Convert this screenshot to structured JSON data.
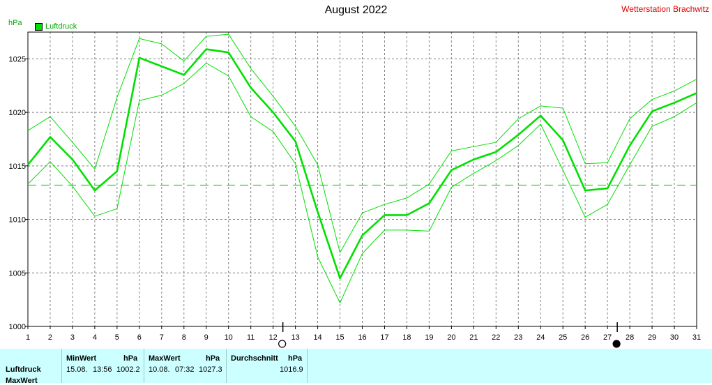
{
  "header": {
    "title": "August 2022",
    "station": "Wetterstation Brachwitz",
    "unit": "hPa",
    "legend": "Luftdruck"
  },
  "chart_data": {
    "type": "line",
    "title": "August 2022",
    "ylabel": "hPa",
    "ylim": [
      1000,
      1027.5
    ],
    "yticks": [
      1000,
      1005,
      1010,
      1015,
      1020,
      1025
    ],
    "xlim": [
      1,
      31
    ],
    "x": [
      1,
      2,
      3,
      4,
      5,
      6,
      7,
      8,
      9,
      10,
      11,
      12,
      13,
      14,
      15,
      16,
      17,
      18,
      19,
      20,
      21,
      22,
      23,
      24,
      25,
      26,
      27,
      28,
      29,
      30,
      31
    ],
    "series": [
      {
        "name": "Luftdruck",
        "role": "mean",
        "values": [
          1015.1,
          1017.7,
          1015.6,
          1012.7,
          1014.5,
          1025.1,
          1024.3,
          1023.5,
          1025.9,
          1025.6,
          1022.3,
          1020.0,
          1017.3,
          1010.7,
          1004.5,
          1008.5,
          1010.4,
          1010.4,
          1011.5,
          1014.6,
          1015.6,
          1016.3,
          1017.9,
          1019.7,
          1017.4,
          1012.7,
          1012.9,
          1016.9,
          1020.1,
          1020.9,
          1021.8
        ]
      },
      {
        "role": "max",
        "values": [
          1018.3,
          1019.6,
          1017.2,
          1014.7,
          1021.4,
          1026.9,
          1026.4,
          1024.8,
          1027.1,
          1027.3,
          1024.1,
          1021.5,
          1018.7,
          1015.1,
          1006.9,
          1010.6,
          1011.4,
          1012.0,
          1013.3,
          1016.4,
          1016.8,
          1017.2,
          1019.4,
          1020.6,
          1020.4,
          1015.2,
          1015.3,
          1019.4,
          1021.2,
          1022.0,
          1023.1
        ]
      },
      {
        "role": "min",
        "values": [
          1013.3,
          1015.4,
          1013.1,
          1010.3,
          1011.0,
          1021.1,
          1021.6,
          1022.7,
          1024.6,
          1023.4,
          1019.6,
          1018.2,
          1015.2,
          1006.5,
          1002.2,
          1006.8,
          1009.0,
          1009.0,
          1008.9,
          1013.0,
          1014.3,
          1015.5,
          1016.9,
          1018.9,
          1014.6,
          1010.2,
          1011.4,
          1015.1,
          1018.7,
          1019.6,
          1020.9
        ]
      }
    ],
    "average": 1016.9,
    "average_line_value": 1013.2,
    "markers": [
      {
        "day": 12,
        "symbol": "full-moon"
      },
      {
        "day": 27,
        "symbol": "new-moon"
      }
    ],
    "grid": true,
    "colors": {
      "series": "#00e000",
      "grid": "#808080",
      "axis": "#000000",
      "title": "#000000",
      "station": "#e00000",
      "unit": "#00aa00"
    }
  },
  "stats": {
    "row_label": "Luftdruck",
    "row_label_2": "MaxWert",
    "min": {
      "header": "MinWert",
      "unit": "hPa",
      "date": "15.08.",
      "time": "13:56",
      "value": "1002.2"
    },
    "max": {
      "header": "MaxWert",
      "unit": "hPa",
      "date": "10.08.",
      "time": "07:32",
      "value": "1027.3"
    },
    "avg": {
      "header": "Durchschnitt",
      "unit": "hPa",
      "value": "1016.9"
    },
    "background": "#ccffff"
  }
}
